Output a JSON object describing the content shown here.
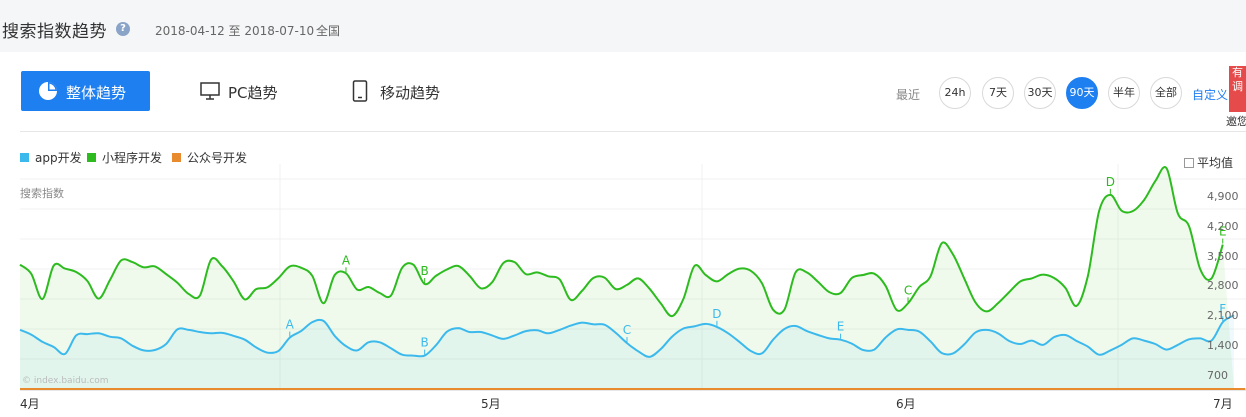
{
  "header": {
    "title": "搜索指数趋势",
    "help": "?",
    "date_range": "2018-04-12 至 2018-07-10",
    "region": "全国"
  },
  "tabs": {
    "overall": "整体趋势",
    "pc": "PC趋势",
    "mobile": "移动趋势"
  },
  "range": {
    "recent_label": "最近",
    "options": [
      "24h",
      "7天",
      "30天",
      "90天",
      "半年",
      "全部"
    ],
    "active": "90天",
    "custom": "自定义"
  },
  "promo": {
    "badge": "有调",
    "invite": "邀您"
  },
  "average_toggle": "平均值",
  "watermark": "© index.baidu.com",
  "chart_data": {
    "type": "area",
    "ylabel": "搜索指数",
    "ylim": [
      0,
      5200
    ],
    "yticks": [
      "4,900",
      "4,200",
      "3,500",
      "2,800",
      "2,100",
      "1,400",
      "700"
    ],
    "xticks": [
      "4月",
      "5月",
      "6月",
      "7月"
    ],
    "series": [
      {
        "name": "app开发",
        "color": "#3cb9ec",
        "values": [
          1380,
          1270,
          1100,
          980,
          820,
          1250,
          1280,
          1300,
          1220,
          1180,
          1010,
          900,
          910,
          1050,
          1390,
          1380,
          1330,
          1300,
          1310,
          1240,
          1150,
          970,
          850,
          890,
          1200,
          1350,
          1560,
          1590,
          1240,
          1000,
          900,
          1090,
          1090,
          950,
          800,
          780,
          780,
          1020,
          1340,
          1420,
          1330,
          1330,
          1250,
          1170,
          1250,
          1350,
          1370,
          1300,
          1380,
          1480,
          1550,
          1510,
          1500,
          1310,
          1070,
          880,
          750,
          930,
          1220,
          1410,
          1460,
          1520,
          1450,
          1300,
          1100,
          890,
          830,
          1150,
          1400,
          1470,
          1350,
          1260,
          1180,
          1150,
          1060,
          910,
          920,
          1200,
          1390,
          1380,
          1340,
          1110,
          840,
          830,
          1040,
          1320,
          1380,
          1300,
          1120,
          1050,
          1130,
          1030,
          1210,
          1260,
          1120,
          990,
          800,
          900,
          1030,
          1180,
          1130,
          1050,
          920,
          1030,
          1160,
          1180,
          1130,
          1560,
          1720
        ]
      },
      {
        "name": "小程序开发",
        "color": "#2dbb1f",
        "values": [
          2900,
          2690,
          2100,
          2880,
          2810,
          2730,
          2520,
          2110,
          2540,
          3000,
          2960,
          2840,
          2860,
          2680,
          2480,
          2220,
          2180,
          3020,
          2860,
          2510,
          2090,
          2330,
          2370,
          2590,
          2860,
          2830,
          2640,
          2000,
          2660,
          2700,
          2320,
          2380,
          2240,
          2180,
          2830,
          2900,
          2450,
          2640,
          2790,
          2870,
          2640,
          2350,
          2490,
          2940,
          2960,
          2680,
          2720,
          2630,
          2560,
          2080,
          2290,
          2590,
          2600,
          2330,
          2430,
          2580,
          2340,
          2000,
          1700,
          2090,
          2870,
          2660,
          2510,
          2680,
          2810,
          2760,
          2470,
          1850,
          1850,
          2720,
          2720,
          2500,
          2260,
          2240,
          2590,
          2660,
          2690,
          2410,
          1840,
          2000,
          2380,
          2630,
          3400,
          3140,
          2580,
          2020,
          1810,
          2000,
          2260,
          2510,
          2580,
          2670,
          2590,
          2360,
          1940,
          2640,
          4150,
          4530,
          4160,
          4150,
          4410,
          4850,
          5150,
          4100,
          3800,
          2790,
          2580,
          3370
        ]
      },
      {
        "name": "公众号开发",
        "color": "#e88b2e",
        "values": [
          0,
          0,
          0,
          0,
          0,
          0,
          0,
          0,
          0,
          0,
          0,
          0,
          0,
          0,
          0,
          0,
          0,
          0,
          0,
          0,
          0,
          0,
          0,
          0,
          0,
          0,
          0,
          0,
          0,
          0,
          0,
          0,
          0,
          0,
          0,
          0,
          0,
          0,
          0,
          0,
          0,
          0,
          0,
          0,
          0,
          0,
          0,
          0,
          0,
          0,
          0,
          0,
          0,
          0,
          0,
          0,
          0,
          0,
          0,
          0,
          0,
          0,
          0,
          0,
          0,
          0,
          0,
          0,
          0,
          0,
          0,
          0,
          0,
          0,
          0,
          0,
          0,
          0,
          0,
          0,
          0,
          0,
          0,
          0,
          0,
          0,
          0,
          0,
          0,
          0,
          0,
          0,
          0,
          0,
          0,
          0,
          0,
          0,
          0,
          0,
          0,
          0,
          0,
          0,
          0,
          0,
          0,
          0,
          0,
          0
        ]
      }
    ],
    "annotations": [
      {
        "series": 0,
        "label": "A",
        "index": 24
      },
      {
        "series": 0,
        "label": "B",
        "index": 36
      },
      {
        "series": 0,
        "label": "C",
        "index": 54
      },
      {
        "series": 0,
        "label": "D",
        "index": 62
      },
      {
        "series": 0,
        "label": "E",
        "index": 73
      },
      {
        "series": 0,
        "label": "F",
        "index": 107
      },
      {
        "series": 1,
        "label": "A",
        "index": 29
      },
      {
        "series": 1,
        "label": "B",
        "index": 36
      },
      {
        "series": 1,
        "label": "C",
        "index": 79
      },
      {
        "series": 1,
        "label": "D",
        "index": 97
      },
      {
        "series": 1,
        "label": "E",
        "index": 107
      }
    ],
    "legend_position": "top-left",
    "grid": true
  }
}
